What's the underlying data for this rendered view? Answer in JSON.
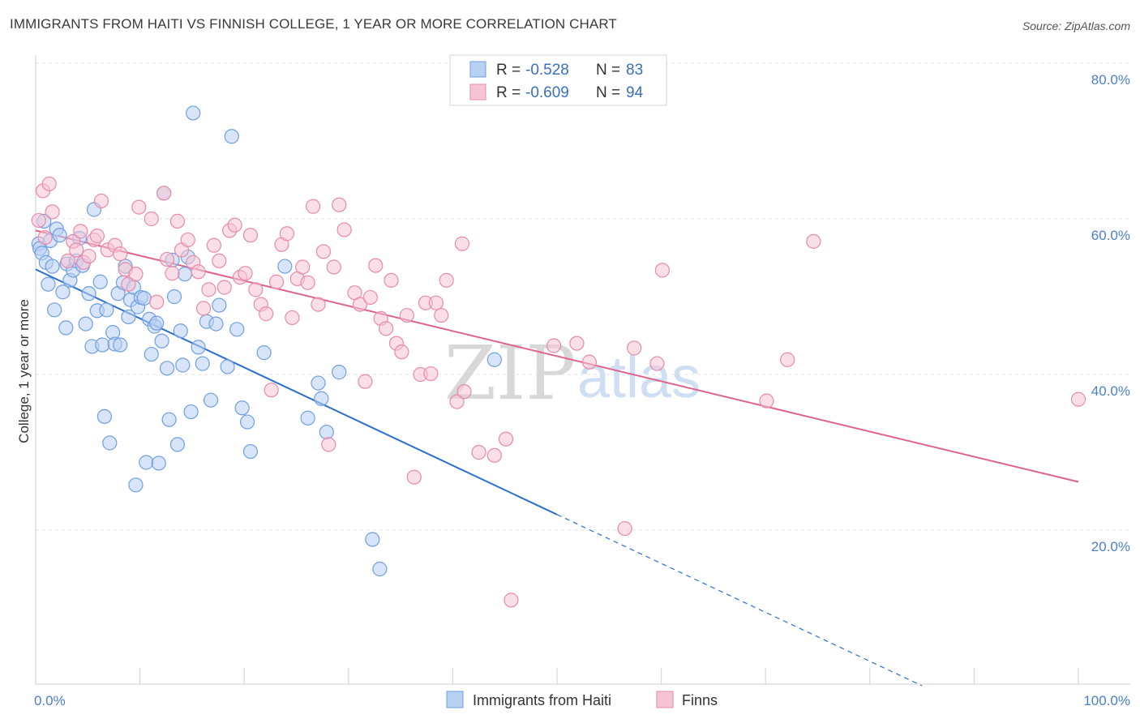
{
  "header": {
    "title": "IMMIGRANTS FROM HAITI VS FINNISH COLLEGE, 1 YEAR OR MORE CORRELATION CHART",
    "source": "Source: ZipAtlas.com"
  },
  "watermark": {
    "zip": "ZIP",
    "atlas": "atlas"
  },
  "chart_data": {
    "type": "scatter",
    "title": "IMMIGRANTS FROM HAITI VS FINNISH COLLEGE, 1 YEAR OR MORE CORRELATION CHART",
    "xlabel": "",
    "ylabel": "College, 1 year or more",
    "xlim": [
      0,
      100
    ],
    "ylim": [
      0,
      82
    ],
    "x_tick_labels": [
      {
        "value": 0,
        "label": "0.0%"
      },
      {
        "value": 100,
        "label": "100.0%"
      }
    ],
    "y_tick_labels": [
      {
        "value": 20,
        "label": "20.0%"
      },
      {
        "value": 40,
        "label": "40.0%"
      },
      {
        "value": 60,
        "label": "60.0%"
      },
      {
        "value": 80,
        "label": "80.0%"
      }
    ],
    "grid": true,
    "legend_position": "top-center",
    "series": [
      {
        "name": "Immigrants from Haiti",
        "color": "#6f9fe0",
        "fill": "#b8d0f2",
        "line_color": "#2a6fcf",
        "R": "-0.528",
        "N": "83",
        "trend": {
          "x0": 0,
          "y0": 53.5,
          "x1": 50,
          "y1": 22,
          "dash_x1": 85,
          "dash_y1": 0
        },
        "points": [
          [
            0.3,
            56.8
          ],
          [
            0.4,
            56.2
          ],
          [
            0.6,
            55.6
          ],
          [
            0.8,
            59.7
          ],
          [
            1.0,
            54.4
          ],
          [
            1.2,
            51.6
          ],
          [
            1.4,
            57.2
          ],
          [
            1.6,
            53.9
          ],
          [
            1.8,
            48.3
          ],
          [
            2.0,
            58.7
          ],
          [
            2.3,
            57.9
          ],
          [
            2.6,
            50.6
          ],
          [
            2.9,
            46.0
          ],
          [
            3.0,
            54.2
          ],
          [
            3.3,
            52.1
          ],
          [
            3.6,
            53.4
          ],
          [
            3.9,
            54.6
          ],
          [
            4.2,
            57.5
          ],
          [
            4.5,
            54.0
          ],
          [
            4.8,
            46.5
          ],
          [
            5.1,
            50.4
          ],
          [
            5.4,
            43.6
          ],
          [
            5.6,
            61.2
          ],
          [
            5.9,
            48.2
          ],
          [
            6.2,
            51.9
          ],
          [
            6.4,
            43.8
          ],
          [
            6.6,
            34.6
          ],
          [
            6.8,
            48.3
          ],
          [
            7.1,
            31.2
          ],
          [
            7.4,
            45.4
          ],
          [
            7.6,
            43.9
          ],
          [
            7.9,
            50.4
          ],
          [
            8.1,
            43.8
          ],
          [
            8.4,
            51.8
          ],
          [
            8.6,
            53.9
          ],
          [
            8.9,
            47.4
          ],
          [
            9.1,
            49.6
          ],
          [
            9.4,
            51.2
          ],
          [
            9.6,
            25.8
          ],
          [
            9.8,
            48.7
          ],
          [
            10.1,
            49.9
          ],
          [
            10.4,
            49.8
          ],
          [
            10.6,
            28.7
          ],
          [
            10.9,
            47.1
          ],
          [
            11.1,
            42.6
          ],
          [
            11.4,
            46.2
          ],
          [
            11.6,
            46.6
          ],
          [
            11.8,
            28.6
          ],
          [
            12.1,
            44.3
          ],
          [
            12.3,
            63.3
          ],
          [
            12.6,
            40.8
          ],
          [
            12.8,
            34.2
          ],
          [
            13.1,
            54.7
          ],
          [
            13.3,
            50.0
          ],
          [
            13.6,
            31.0
          ],
          [
            13.9,
            45.6
          ],
          [
            14.1,
            41.2
          ],
          [
            14.3,
            52.9
          ],
          [
            14.6,
            55.1
          ],
          [
            14.9,
            35.2
          ],
          [
            15.1,
            73.6
          ],
          [
            15.6,
            43.5
          ],
          [
            16.0,
            41.4
          ],
          [
            16.4,
            46.8
          ],
          [
            16.8,
            36.7
          ],
          [
            17.3,
            46.5
          ],
          [
            17.6,
            48.9
          ],
          [
            18.4,
            41.0
          ],
          [
            18.8,
            70.6
          ],
          [
            19.3,
            45.8
          ],
          [
            19.8,
            35.7
          ],
          [
            20.3,
            33.9
          ],
          [
            20.6,
            30.1
          ],
          [
            21.9,
            42.8
          ],
          [
            23.9,
            53.9
          ],
          [
            26.1,
            34.4
          ],
          [
            27.1,
            38.9
          ],
          [
            27.4,
            36.9
          ],
          [
            27.9,
            32.6
          ],
          [
            29.1,
            40.3
          ],
          [
            32.3,
            18.8
          ],
          [
            33.0,
            15.0
          ],
          [
            44.0,
            41.9
          ]
        ]
      },
      {
        "name": "Finns",
        "color": "#e88aa8",
        "fill": "#f6c4d3",
        "line_color": "#e0628b",
        "R": "-0.609",
        "N": "94",
        "trend": {
          "x0": 0,
          "y0": 58.5,
          "x1": 100,
          "y1": 26.2
        },
        "points": [
          [
            0.3,
            59.8
          ],
          [
            0.7,
            63.6
          ],
          [
            0.9,
            57.6
          ],
          [
            1.3,
            64.5
          ],
          [
            1.6,
            60.9
          ],
          [
            3.1,
            54.6
          ],
          [
            3.6,
            57.1
          ],
          [
            3.9,
            56.0
          ],
          [
            4.3,
            58.4
          ],
          [
            4.6,
            54.4
          ],
          [
            5.1,
            55.2
          ],
          [
            5.6,
            57.3
          ],
          [
            5.9,
            57.8
          ],
          [
            6.3,
            62.3
          ],
          [
            6.9,
            56.0
          ],
          [
            7.6,
            56.6
          ],
          [
            8.1,
            55.5
          ],
          [
            8.6,
            53.5
          ],
          [
            8.9,
            51.6
          ],
          [
            9.6,
            52.9
          ],
          [
            9.9,
            61.5
          ],
          [
            11.1,
            60.0
          ],
          [
            11.6,
            49.3
          ],
          [
            12.3,
            63.3
          ],
          [
            12.6,
            54.8
          ],
          [
            13.1,
            53.0
          ],
          [
            13.6,
            59.7
          ],
          [
            14.0,
            56.0
          ],
          [
            14.6,
            57.3
          ],
          [
            15.1,
            54.4
          ],
          [
            15.6,
            53.2
          ],
          [
            16.1,
            48.5
          ],
          [
            16.6,
            50.9
          ],
          [
            17.1,
            56.6
          ],
          [
            17.6,
            54.6
          ],
          [
            18.1,
            51.2
          ],
          [
            18.6,
            58.5
          ],
          [
            19.1,
            59.2
          ],
          [
            19.6,
            52.5
          ],
          [
            20.1,
            53.0
          ],
          [
            20.6,
            57.9
          ],
          [
            21.1,
            50.9
          ],
          [
            21.6,
            49.0
          ],
          [
            22.1,
            47.8
          ],
          [
            22.6,
            38.0
          ],
          [
            23.1,
            51.9
          ],
          [
            23.6,
            56.7
          ],
          [
            24.1,
            58.1
          ],
          [
            24.6,
            47.3
          ],
          [
            25.1,
            52.3
          ],
          [
            25.6,
            53.8
          ],
          [
            26.1,
            51.8
          ],
          [
            26.6,
            61.6
          ],
          [
            27.1,
            49.0
          ],
          [
            27.6,
            55.8
          ],
          [
            28.1,
            31.0
          ],
          [
            28.6,
            53.8
          ],
          [
            29.1,
            61.8
          ],
          [
            29.6,
            58.6
          ],
          [
            30.6,
            50.5
          ],
          [
            31.1,
            49.0
          ],
          [
            31.6,
            39.1
          ],
          [
            32.1,
            49.9
          ],
          [
            32.6,
            54.0
          ],
          [
            33.1,
            47.2
          ],
          [
            33.6,
            45.9
          ],
          [
            34.1,
            52.1
          ],
          [
            34.6,
            44.0
          ],
          [
            35.1,
            42.9
          ],
          [
            35.6,
            47.6
          ],
          [
            36.3,
            26.8
          ],
          [
            36.9,
            40.0
          ],
          [
            37.4,
            49.2
          ],
          [
            37.9,
            40.1
          ],
          [
            38.4,
            49.2
          ],
          [
            38.9,
            47.6
          ],
          [
            39.4,
            52.1
          ],
          [
            40.4,
            36.5
          ],
          [
            40.9,
            56.8
          ],
          [
            41.1,
            37.8
          ],
          [
            42.5,
            30.0
          ],
          [
            44.0,
            29.6
          ],
          [
            45.1,
            31.7
          ],
          [
            45.6,
            11.0
          ],
          [
            49.7,
            43.7
          ],
          [
            51.9,
            44.0
          ],
          [
            53.1,
            41.6
          ],
          [
            56.5,
            20.2
          ],
          [
            57.4,
            43.4
          ],
          [
            59.6,
            41.4
          ],
          [
            60.1,
            53.4
          ],
          [
            70.1,
            36.6
          ],
          [
            72.1,
            41.9
          ],
          [
            74.6,
            57.1
          ],
          [
            100.0,
            36.8
          ]
        ]
      }
    ]
  },
  "legend": {
    "entries": [
      {
        "r_label": "R =",
        "r_value": "-0.528",
        "n_label": "N =",
        "n_value": "83"
      },
      {
        "r_label": "R =",
        "r_value": "-0.609",
        "n_label": "N =",
        "n_value": "94"
      }
    ]
  },
  "bottom_legend": [
    "Immigrants from Haiti",
    "Finns"
  ]
}
